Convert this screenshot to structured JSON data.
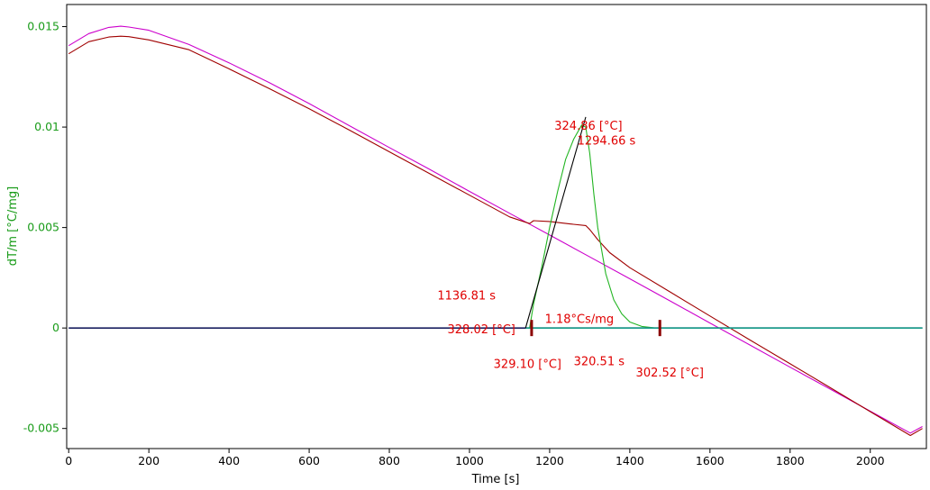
{
  "chart_data": {
    "type": "line",
    "xlabel": "Time [s]",
    "ylabel": "dT/m  [°C/mg]",
    "xlim": [
      -5,
      2140
    ],
    "ylim": [
      -0.006,
      0.0161
    ],
    "x_ticks": [
      {
        "v": 0,
        "label": "0"
      },
      {
        "v": 200,
        "label": "200"
      },
      {
        "v": 400,
        "label": "400"
      },
      {
        "v": 600,
        "label": "600"
      },
      {
        "v": 800,
        "label": "800"
      },
      {
        "v": 1000,
        "label": "1000"
      },
      {
        "v": 1200,
        "label": "1200"
      },
      {
        "v": 1400,
        "label": "1400"
      },
      {
        "v": 1600,
        "label": "1600"
      },
      {
        "v": 1800,
        "label": "1800"
      },
      {
        "v": 2000,
        "label": "2000"
      }
    ],
    "y_ticks": [
      {
        "v": 0.015,
        "label": "0.015"
      },
      {
        "v": 0.01,
        "label": "0.01"
      },
      {
        "v": 0.005,
        "label": "0.005"
      },
      {
        "v": 0,
        "label": "0"
      },
      {
        "v": -0.005,
        "label": "-0.005"
      }
    ],
    "grid": false,
    "colors": {
      "axis_label": "#1a9c1a",
      "annotation": "#e00000",
      "magenta_curve": "#cc00cc",
      "darkred_curve": "#a00000",
      "green_peak": "#22b522",
      "baseline_navy": "#1a2060",
      "baseline_teal": "#1aa08c",
      "tangent": "#000000",
      "marker": "#8b0000"
    },
    "series": [
      {
        "color": "#cc00cc",
        "x": [
          0,
          50,
          100,
          130,
          150,
          200,
          300,
          400,
          500,
          600,
          700,
          800,
          900,
          1000,
          1100,
          1150,
          1200,
          1300,
          1400,
          1500,
          1600,
          1700,
          1800,
          1900,
          2000,
          2100,
          2130
        ],
        "y": [
          0.01405,
          0.01465,
          0.01496,
          0.01502,
          0.01498,
          0.01482,
          0.01411,
          0.0132,
          0.01222,
          0.01117,
          0.01007,
          0.00898,
          0.0079,
          0.0068,
          0.00571,
          0.00517,
          0.00463,
          0.00354,
          0.00245,
          0.00135,
          0.00025,
          -0.00085,
          -0.00195,
          -0.00304,
          -0.00414,
          -0.00523,
          -0.0049
        ]
      },
      {
        "color": "#a00000",
        "x": [
          0,
          50,
          100,
          130,
          150,
          200,
          300,
          400,
          500,
          600,
          700,
          800,
          900,
          1000,
          1100,
          1150,
          1160,
          1200,
          1250,
          1290,
          1300,
          1320,
          1350,
          1400,
          1500,
          1600,
          1700,
          1800,
          1900,
          2000,
          2100,
          2130
        ],
        "y": [
          0.01365,
          0.01425,
          0.01448,
          0.01452,
          0.0145,
          0.01434,
          0.01385,
          0.0129,
          0.01192,
          0.01091,
          0.00985,
          0.00877,
          0.00769,
          0.00661,
          0.00553,
          0.0052,
          0.00534,
          0.0053,
          0.00518,
          0.0051,
          0.0049,
          0.0044,
          0.00375,
          0.003,
          0.0018,
          0.0006,
          -0.0006,
          -0.00178,
          -0.00297,
          -0.00416,
          -0.00535,
          -0.005
        ]
      },
      {
        "color": "#22b522",
        "x": [
          1140,
          1150,
          1160,
          1180,
          1200,
          1220,
          1240,
          1260,
          1280,
          1290,
          1300,
          1310,
          1320,
          1340,
          1360,
          1380,
          1400,
          1430,
          1460,
          1480
        ],
        "y": [
          0,
          0,
          0.0012,
          0.003,
          0.005,
          0.0068,
          0.0084,
          0.0094,
          0.0101,
          0.01,
          0.0087,
          0.0067,
          0.005,
          0.0027,
          0.0014,
          0.0007,
          0.0003,
          8e-05,
          1e-05,
          0
        ]
      },
      {
        "color": "#1a2060",
        "x": [
          0,
          2130
        ],
        "y": [
          0,
          0
        ]
      },
      {
        "color": "#1aa08c",
        "x": [
          1140,
          2130
        ],
        "y": [
          0,
          0
        ]
      },
      {
        "color": "#000000",
        "x": [
          1140,
          1290
        ],
        "y": [
          0,
          0.0105
        ]
      }
    ],
    "markers": [
      {
        "x": 1155,
        "y": 0
      },
      {
        "x": 1475,
        "y": 0
      }
    ],
    "annotations": [
      {
        "text": "324.86 [°C]",
        "x": 1212,
        "y": 0.00988
      },
      {
        "text": "1294.66 s",
        "x": 1269,
        "y": 0.00912
      },
      {
        "text": "1136.81 s",
        "x": 920,
        "y": 0.00142
      },
      {
        "text": "1.18°Cs/mg",
        "x": 1188,
        "y": 0.00025
      },
      {
        "text": "328.02 [°C]",
        "x": 945,
        "y": -0.00027
      },
      {
        "text": "329.10 [°C]",
        "x": 1060,
        "y": -0.00198
      },
      {
        "text": "320.51 s",
        "x": 1260,
        "y": -0.00185
      },
      {
        "text": "302.52 [°C]",
        "x": 1415,
        "y": -0.00242
      }
    ]
  }
}
